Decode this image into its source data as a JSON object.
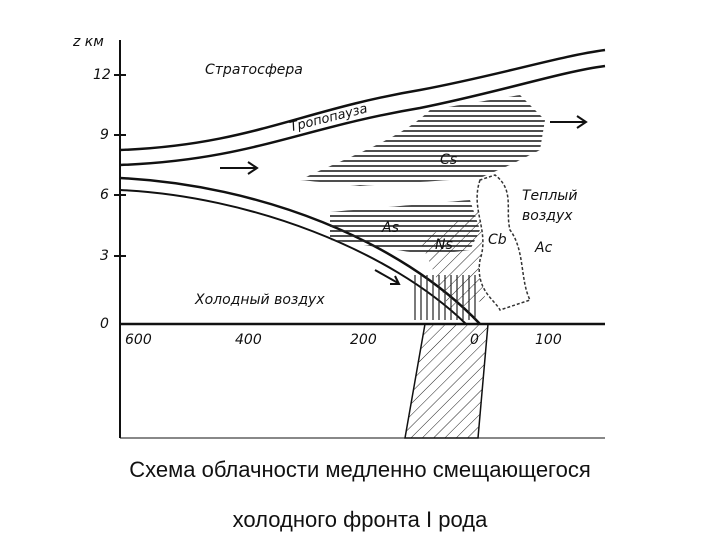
{
  "diagram": {
    "z_label": "z км",
    "z_ticks": [
      "12",
      "9",
      "6",
      "3",
      "0"
    ],
    "x_ticks": [
      "600",
      "400",
      "200",
      "0",
      "100"
    ],
    "stratosphere": "Стратосфера",
    "tropopause": "Тропопауза",
    "cloud_cs": "Cs",
    "cloud_as": "As",
    "cloud_ns": "Ns",
    "cloud_cb": "Cb",
    "cloud_ac": "Ac",
    "warm_air": [
      "Теплый",
      "воздух"
    ],
    "cold_air": "Холодный воздух"
  },
  "caption": [
    "Схема облачности медленно смещающегося",
    "холодного фронта I рода"
  ]
}
